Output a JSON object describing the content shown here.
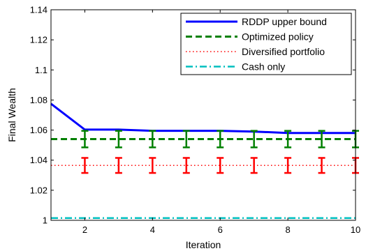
{
  "chart_data": {
    "type": "line",
    "title": "",
    "xlabel": "Iteration",
    "ylabel": "Final Wealth",
    "xlim": [
      1,
      10
    ],
    "ylim": [
      1,
      1.14
    ],
    "xticks": [
      2,
      4,
      6,
      8,
      10
    ],
    "yticks": [
      1,
      1.02,
      1.04,
      1.06,
      1.08,
      1.1,
      1.12,
      1.14
    ],
    "grid": false,
    "legend_position": "top-right",
    "x": [
      1,
      2,
      3,
      4,
      5,
      6,
      7,
      8,
      9,
      10
    ],
    "series": [
      {
        "name": "RDDP upper bound",
        "color": "#0000ff",
        "style": "solid",
        "values": [
          1.0775,
          1.0603,
          1.0603,
          1.0595,
          1.0595,
          1.0595,
          1.059,
          1.0581,
          1.0581,
          1.0581
        ]
      },
      {
        "name": "Optimized policy",
        "color": "#008000",
        "style": "dashed",
        "values": [
          1.054,
          1.054,
          1.054,
          1.054,
          1.054,
          1.054,
          1.054,
          1.054,
          1.054,
          1.054
        ],
        "error_bars": {
          "x": [
            2,
            3,
            4,
            5,
            6,
            7,
            8,
            9,
            10
          ],
          "low": 1.0485,
          "high": 1.0595
        }
      },
      {
        "name": "Diversified portfolio",
        "color": "#ff0000",
        "style": "dotted",
        "values": [
          1.0365,
          1.0365,
          1.0365,
          1.0365,
          1.0365,
          1.0365,
          1.0365,
          1.0365,
          1.0365,
          1.0365
        ],
        "error_bars": {
          "x": [
            2,
            3,
            4,
            5,
            6,
            7,
            8,
            9,
            10
          ],
          "low": 1.0315,
          "high": 1.0415
        }
      },
      {
        "name": "Cash only",
        "color": "#00bfbf",
        "style": "dashdot",
        "values": [
          1.0015,
          1.0015,
          1.0015,
          1.0015,
          1.0015,
          1.0015,
          1.0015,
          1.0015,
          1.0015,
          1.0015
        ]
      }
    ]
  }
}
